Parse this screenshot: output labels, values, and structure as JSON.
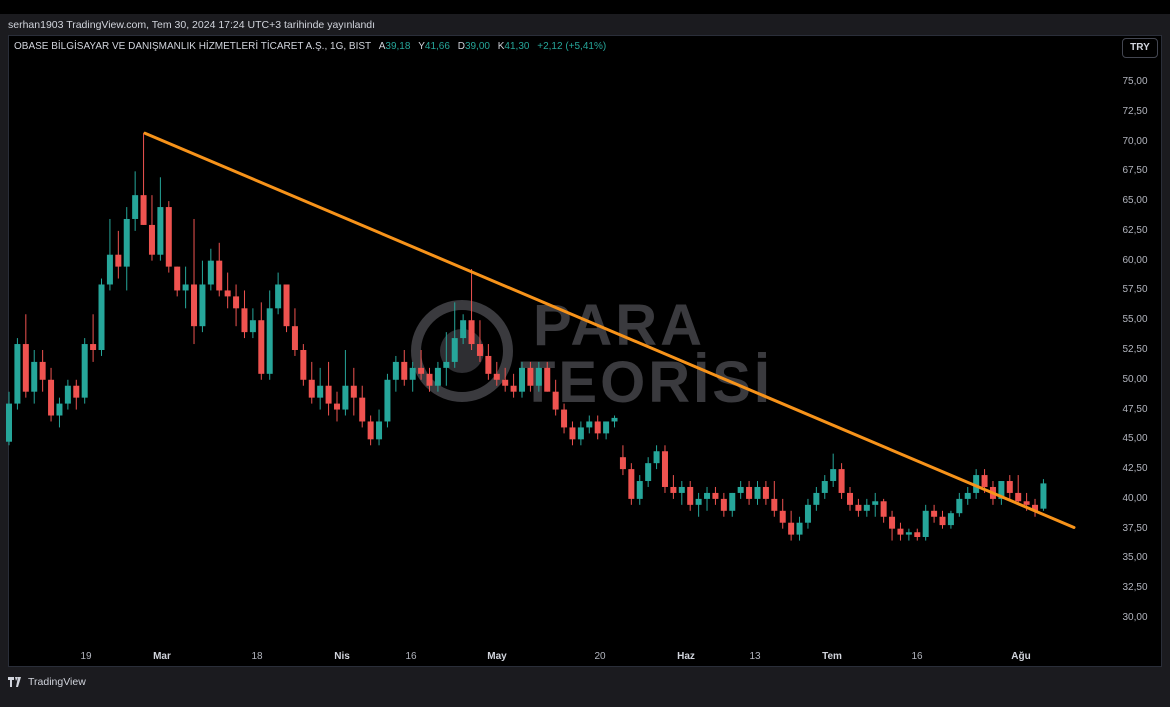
{
  "header": {
    "published_line": "serhan1903 TradingView.com, Tem 30, 2024 17:24 UTC+3 tarihinde yayınlandı"
  },
  "legend": {
    "symbol": "OBASE BİLGİSAYAR VE DANIŞMANLIK HİZMETLERİ TİCARET A.Ş., 1G, BIST",
    "open_key": "A",
    "open": "39,18",
    "high_key": "Y",
    "high": "41,66",
    "low_key": "D",
    "low": "39,00",
    "close_key": "K",
    "close": "41,30",
    "change": "+2,12 (+5,41%)"
  },
  "currency_button": "TRY",
  "watermark": {
    "line1": "PARA",
    "line2": "TEORİSİ"
  },
  "footer": {
    "brand": "TradingView"
  },
  "colors": {
    "up": "#26a69a",
    "down": "#ef5350",
    "trendline": "#f7931a",
    "background": "#000000"
  },
  "chart_data": {
    "type": "candlestick",
    "y_axis_ticks": [
      "75,00",
      "72,50",
      "70,00",
      "67,50",
      "65,00",
      "62,50",
      "60,00",
      "57,50",
      "55,00",
      "52,50",
      "50,00",
      "47,50",
      "45,00",
      "42,50",
      "40,00",
      "37,50",
      "35,00",
      "32,50",
      "30,00"
    ],
    "x_axis_ticks": [
      {
        "label": "19",
        "bold": false
      },
      {
        "label": "Mar",
        "bold": true
      },
      {
        "label": "18",
        "bold": false
      },
      {
        "label": "Nis",
        "bold": true
      },
      {
        "label": "16",
        "bold": false
      },
      {
        "label": "May",
        "bold": true
      },
      {
        "label": "20",
        "bold": false
      },
      {
        "label": "Haz",
        "bold": true
      },
      {
        "label": "13",
        "bold": false
      },
      {
        "label": "Tem",
        "bold": true
      },
      {
        "label": "16",
        "bold": false
      },
      {
        "label": "Ağu",
        "bold": true
      }
    ],
    "ylim": [
      27.5,
      77.5
    ],
    "trendline": {
      "start": {
        "bar": 16,
        "price": 70.7
      },
      "end": {
        "bar": 121,
        "price": 37.6
      }
    },
    "candles": [
      {
        "o": 44.8,
        "h": 49.0,
        "l": 44.5,
        "c": 48.0
      },
      {
        "o": 48.0,
        "h": 53.5,
        "l": 47.5,
        "c": 53.0
      },
      {
        "o": 53.0,
        "h": 55.5,
        "l": 48.5,
        "c": 49.0
      },
      {
        "o": 49.0,
        "h": 52.5,
        "l": 48.0,
        "c": 51.5
      },
      {
        "o": 51.5,
        "h": 52.5,
        "l": 49.0,
        "c": 50.0
      },
      {
        "o": 50.0,
        "h": 51.0,
        "l": 46.5,
        "c": 47.0
      },
      {
        "o": 47.0,
        "h": 48.5,
        "l": 46.0,
        "c": 48.0
      },
      {
        "o": 48.0,
        "h": 50.0,
        "l": 47.5,
        "c": 49.5
      },
      {
        "o": 49.5,
        "h": 50.0,
        "l": 47.5,
        "c": 48.5
      },
      {
        "o": 48.5,
        "h": 53.5,
        "l": 48.0,
        "c": 53.0
      },
      {
        "o": 53.0,
        "h": 55.5,
        "l": 51.5,
        "c": 52.5
      },
      {
        "o": 52.5,
        "h": 58.5,
        "l": 52.0,
        "c": 58.0
      },
      {
        "o": 58.0,
        "h": 63.5,
        "l": 57.5,
        "c": 60.5
      },
      {
        "o": 60.5,
        "h": 62.5,
        "l": 58.5,
        "c": 59.5
      },
      {
        "o": 59.5,
        "h": 64.5,
        "l": 57.5,
        "c": 63.5
      },
      {
        "o": 63.5,
        "h": 67.5,
        "l": 62.5,
        "c": 65.5
      },
      {
        "o": 65.5,
        "h": 70.7,
        "l": 63.0,
        "c": 63.0
      },
      {
        "o": 63.0,
        "h": 65.5,
        "l": 60.0,
        "c": 60.5
      },
      {
        "o": 60.5,
        "h": 67.0,
        "l": 60.0,
        "c": 64.5
      },
      {
        "o": 64.5,
        "h": 65.0,
        "l": 59.0,
        "c": 59.5
      },
      {
        "o": 59.5,
        "h": 59.5,
        "l": 57.0,
        "c": 57.5
      },
      {
        "o": 57.5,
        "h": 59.5,
        "l": 56.0,
        "c": 58.0
      },
      {
        "o": 58.0,
        "h": 63.5,
        "l": 53.0,
        "c": 54.5
      },
      {
        "o": 54.5,
        "h": 60.0,
        "l": 54.0,
        "c": 58.0
      },
      {
        "o": 58.0,
        "h": 61.0,
        "l": 57.5,
        "c": 60.0
      },
      {
        "o": 60.0,
        "h": 61.5,
        "l": 57.0,
        "c": 57.5
      },
      {
        "o": 57.5,
        "h": 59.0,
        "l": 56.0,
        "c": 57.0
      },
      {
        "o": 57.0,
        "h": 58.0,
        "l": 54.5,
        "c": 56.0
      },
      {
        "o": 56.0,
        "h": 57.5,
        "l": 53.5,
        "c": 54.0
      },
      {
        "o": 54.0,
        "h": 56.0,
        "l": 53.5,
        "c": 55.0
      },
      {
        "o": 55.0,
        "h": 56.5,
        "l": 50.0,
        "c": 50.5
      },
      {
        "o": 50.5,
        "h": 57.5,
        "l": 50.0,
        "c": 56.0
      },
      {
        "o": 56.0,
        "h": 59.0,
        "l": 55.5,
        "c": 58.0
      },
      {
        "o": 58.0,
        "h": 58.0,
        "l": 54.0,
        "c": 54.5
      },
      {
        "o": 54.5,
        "h": 56.0,
        "l": 52.0,
        "c": 52.5
      },
      {
        "o": 52.5,
        "h": 53.0,
        "l": 49.5,
        "c": 50.0
      },
      {
        "o": 50.0,
        "h": 51.5,
        "l": 48.0,
        "c": 48.5
      },
      {
        "o": 48.5,
        "h": 51.0,
        "l": 47.5,
        "c": 49.5
      },
      {
        "o": 49.5,
        "h": 51.5,
        "l": 47.0,
        "c": 48.0
      },
      {
        "o": 48.0,
        "h": 49.0,
        "l": 46.5,
        "c": 47.5
      },
      {
        "o": 47.5,
        "h": 52.5,
        "l": 47.0,
        "c": 49.5
      },
      {
        "o": 49.5,
        "h": 51.0,
        "l": 47.0,
        "c": 48.5
      },
      {
        "o": 48.5,
        "h": 49.5,
        "l": 46.0,
        "c": 46.5
      },
      {
        "o": 46.5,
        "h": 47.0,
        "l": 44.5,
        "c": 45.0
      },
      {
        "o": 45.0,
        "h": 47.5,
        "l": 44.5,
        "c": 46.5
      },
      {
        "o": 46.5,
        "h": 50.5,
        "l": 46.0,
        "c": 50.0
      },
      {
        "o": 50.0,
        "h": 52.0,
        "l": 49.0,
        "c": 51.5
      },
      {
        "o": 51.5,
        "h": 52.5,
        "l": 49.5,
        "c": 50.0
      },
      {
        "o": 50.0,
        "h": 51.5,
        "l": 49.0,
        "c": 51.0
      },
      {
        "o": 51.0,
        "h": 52.5,
        "l": 50.0,
        "c": 50.5
      },
      {
        "o": 50.5,
        "h": 51.0,
        "l": 49.0,
        "c": 49.5
      },
      {
        "o": 49.5,
        "h": 51.5,
        "l": 49.0,
        "c": 51.0
      },
      {
        "o": 51.0,
        "h": 54.0,
        "l": 49.5,
        "c": 51.5
      },
      {
        "o": 51.5,
        "h": 56.5,
        "l": 51.0,
        "c": 53.5
      },
      {
        "o": 53.5,
        "h": 55.5,
        "l": 53.0,
        "c": 55.0
      },
      {
        "o": 55.0,
        "h": 59.3,
        "l": 52.5,
        "c": 53.0
      },
      {
        "o": 53.0,
        "h": 55.0,
        "l": 51.5,
        "c": 52.0
      },
      {
        "o": 52.0,
        "h": 53.0,
        "l": 50.0,
        "c": 50.5
      },
      {
        "o": 50.5,
        "h": 51.5,
        "l": 49.5,
        "c": 50.0
      },
      {
        "o": 50.0,
        "h": 51.0,
        "l": 49.0,
        "c": 49.5
      },
      {
        "o": 49.5,
        "h": 50.5,
        "l": 48.5,
        "c": 49.0
      },
      {
        "o": 49.0,
        "h": 51.5,
        "l": 48.5,
        "c": 51.0
      },
      {
        "o": 51.0,
        "h": 51.5,
        "l": 49.0,
        "c": 49.5
      },
      {
        "o": 49.5,
        "h": 51.5,
        "l": 49.0,
        "c": 51.0
      },
      {
        "o": 51.0,
        "h": 51.5,
        "l": 49.0,
        "c": 49.0
      },
      {
        "o": 49.0,
        "h": 50.0,
        "l": 47.0,
        "c": 47.5
      },
      {
        "o": 47.5,
        "h": 48.0,
        "l": 45.5,
        "c": 46.0
      },
      {
        "o": 46.0,
        "h": 46.5,
        "l": 44.5,
        "c": 45.0
      },
      {
        "o": 45.0,
        "h": 46.5,
        "l": 44.5,
        "c": 46.0
      },
      {
        "o": 46.0,
        "h": 47.0,
        "l": 45.5,
        "c": 46.5
      },
      {
        "o": 46.5,
        "h": 47.0,
        "l": 45.0,
        "c": 45.5
      },
      {
        "o": 45.5,
        "h": 46.5,
        "l": 45.0,
        "c": 46.5
      },
      {
        "o": 46.5,
        "h": 47.0,
        "l": 46.0,
        "c": 46.8
      },
      {
        "o": 43.5,
        "h": 44.5,
        "l": 42.0,
        "c": 42.5
      },
      {
        "o": 42.5,
        "h": 43.0,
        "l": 39.5,
        "c": 40.0
      },
      {
        "o": 40.0,
        "h": 42.0,
        "l": 39.5,
        "c": 41.5
      },
      {
        "o": 41.5,
        "h": 43.5,
        "l": 41.0,
        "c": 43.0
      },
      {
        "o": 43.0,
        "h": 44.5,
        "l": 42.5,
        "c": 44.0
      },
      {
        "o": 44.0,
        "h": 44.5,
        "l": 40.5,
        "c": 41.0
      },
      {
        "o": 41.0,
        "h": 42.0,
        "l": 40.0,
        "c": 40.5
      },
      {
        "o": 40.5,
        "h": 41.5,
        "l": 39.5,
        "c": 41.0
      },
      {
        "o": 41.0,
        "h": 41.5,
        "l": 39.0,
        "c": 39.5
      },
      {
        "o": 39.5,
        "h": 40.5,
        "l": 38.5,
        "c": 40.0
      },
      {
        "o": 40.0,
        "h": 41.0,
        "l": 39.0,
        "c": 40.5
      },
      {
        "o": 40.5,
        "h": 41.0,
        "l": 39.5,
        "c": 40.0
      },
      {
        "o": 40.0,
        "h": 40.5,
        "l": 38.5,
        "c": 39.0
      },
      {
        "o": 39.0,
        "h": 40.5,
        "l": 38.5,
        "c": 40.5
      },
      {
        "o": 40.5,
        "h": 41.5,
        "l": 40.0,
        "c": 41.0
      },
      {
        "o": 41.0,
        "h": 41.5,
        "l": 39.5,
        "c": 40.0
      },
      {
        "o": 40.0,
        "h": 41.5,
        "l": 39.5,
        "c": 41.0
      },
      {
        "o": 41.0,
        "h": 41.5,
        "l": 39.5,
        "c": 40.0
      },
      {
        "o": 40.0,
        "h": 41.5,
        "l": 38.5,
        "c": 39.0
      },
      {
        "o": 39.0,
        "h": 40.0,
        "l": 37.5,
        "c": 38.0
      },
      {
        "o": 38.0,
        "h": 39.0,
        "l": 36.5,
        "c": 37.0
      },
      {
        "o": 37.0,
        "h": 38.5,
        "l": 36.5,
        "c": 38.0
      },
      {
        "o": 38.0,
        "h": 40.0,
        "l": 37.5,
        "c": 39.5
      },
      {
        "o": 39.5,
        "h": 41.0,
        "l": 39.0,
        "c": 40.5
      },
      {
        "o": 40.5,
        "h": 42.0,
        "l": 40.0,
        "c": 41.5
      },
      {
        "o": 41.5,
        "h": 43.8,
        "l": 41.0,
        "c": 42.5
      },
      {
        "o": 42.5,
        "h": 43.0,
        "l": 40.0,
        "c": 40.5
      },
      {
        "o": 40.5,
        "h": 41.0,
        "l": 39.0,
        "c": 39.5
      },
      {
        "o": 39.5,
        "h": 40.0,
        "l": 38.5,
        "c": 39.0
      },
      {
        "o": 39.0,
        "h": 40.0,
        "l": 38.5,
        "c": 39.5
      },
      {
        "o": 39.5,
        "h": 40.5,
        "l": 38.5,
        "c": 39.8
      },
      {
        "o": 39.8,
        "h": 40.0,
        "l": 38.0,
        "c": 38.5
      },
      {
        "o": 38.5,
        "h": 39.0,
        "l": 36.5,
        "c": 37.5
      },
      {
        "o": 37.5,
        "h": 38.0,
        "l": 36.5,
        "c": 37.0
      },
      {
        "o": 37.0,
        "h": 37.5,
        "l": 36.5,
        "c": 37.2
      },
      {
        "o": 37.2,
        "h": 37.5,
        "l": 36.5,
        "c": 36.8
      },
      {
        "o": 36.8,
        "h": 39.5,
        "l": 36.5,
        "c": 39.0
      },
      {
        "o": 39.0,
        "h": 39.5,
        "l": 38.0,
        "c": 38.5
      },
      {
        "o": 38.5,
        "h": 39.0,
        "l": 37.5,
        "c": 37.8
      },
      {
        "o": 37.8,
        "h": 39.0,
        "l": 37.5,
        "c": 38.8
      },
      {
        "o": 38.8,
        "h": 40.5,
        "l": 38.5,
        "c": 40.0
      },
      {
        "o": 40.0,
        "h": 41.0,
        "l": 39.5,
        "c": 40.5
      },
      {
        "o": 40.5,
        "h": 42.5,
        "l": 40.0,
        "c": 42.0
      },
      {
        "o": 42.0,
        "h": 42.5,
        "l": 40.5,
        "c": 41.0
      },
      {
        "o": 41.0,
        "h": 41.5,
        "l": 39.5,
        "c": 40.0
      },
      {
        "o": 40.0,
        "h": 41.5,
        "l": 39.5,
        "c": 41.5
      },
      {
        "o": 41.5,
        "h": 42.0,
        "l": 40.0,
        "c": 40.5
      },
      {
        "o": 40.5,
        "h": 42.0,
        "l": 39.5,
        "c": 39.8
      },
      {
        "o": 39.8,
        "h": 40.5,
        "l": 39.0,
        "c": 39.5
      },
      {
        "o": 39.5,
        "h": 40.0,
        "l": 38.5,
        "c": 39.0
      },
      {
        "o": 39.18,
        "h": 41.66,
        "l": 39.0,
        "c": 41.3
      }
    ]
  }
}
